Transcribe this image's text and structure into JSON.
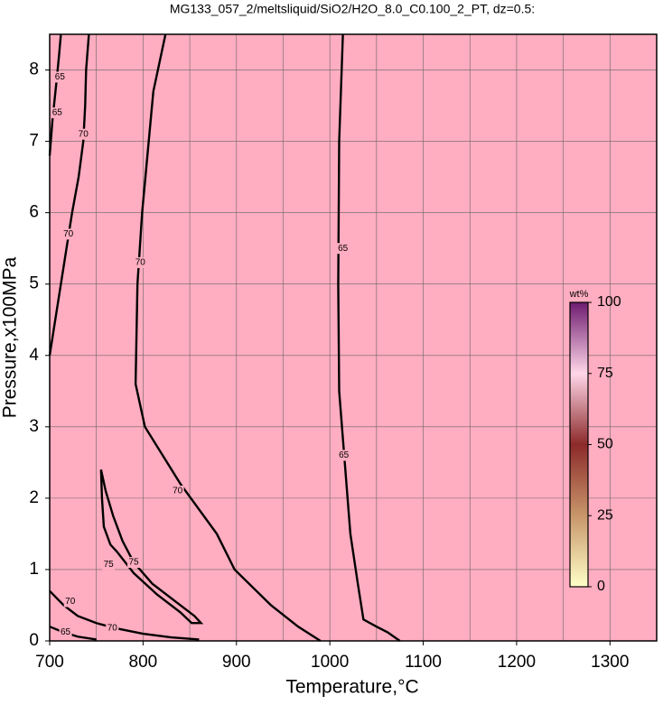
{
  "chart_data": {
    "type": "contour",
    "title": "MG133_057_2/meltsliquid/SiO2/H2O_8.0_C0.100_2_PT, dz=0.5:",
    "xlabel": "Temperature,°C",
    "ylabel": "Pressure,x100MPa",
    "xlim": [
      700,
      1350
    ],
    "ylim": [
      0,
      8.5
    ],
    "xticks": [
      700,
      800,
      900,
      1000,
      1100,
      1200,
      1300
    ],
    "yticks": [
      0,
      1,
      2,
      3,
      4,
      5,
      6,
      7,
      8
    ],
    "xgrid": [
      700,
      750,
      800,
      850,
      900,
      950,
      1000,
      1050,
      1100,
      1150,
      1200,
      1250,
      1300,
      1350
    ],
    "grid": true,
    "fill_color": "#ffadc0",
    "contours": [
      {
        "level": 65,
        "x": [
          1014,
          1010,
          1009,
          1010,
          1016,
          1022,
          1030,
          1036,
          1050,
          1062,
          1075
        ],
        "y": [
          8.5,
          7,
          5,
          3.5,
          2.5,
          1.5,
          0.8,
          0.3,
          0.2,
          0.12,
          0
        ],
        "labels": {
          "x": [
            1014,
            1015
          ],
          "y": [
            5.5,
            2.6
          ]
        }
      },
      {
        "level": 70,
        "x": [
          824,
          811,
          799,
          794,
          792,
          802,
          840,
          879,
          898,
          937,
          966,
          990
        ],
        "y": [
          8.5,
          7.7,
          6,
          5,
          3.6,
          3,
          2.2,
          1.5,
          1,
          0.5,
          0.2,
          0
        ],
        "labels": {
          "x": [
            797,
            837
          ],
          "y": [
            5.3,
            2.1
          ]
        }
      },
      {
        "level": 70,
        "x": [
          742,
          739,
          738,
          736,
          731,
          724,
          718,
          712,
          706,
          700
        ],
        "y": [
          8.5,
          8,
          7.5,
          7.0,
          6.5,
          6,
          5.5,
          5,
          4.5,
          4
        ],
        "labels": {
          "x": [
            736,
            720
          ],
          "y": [
            7.1,
            5.7
          ]
        }
      },
      {
        "level": 65,
        "x": [
          700,
          703,
          707,
          710,
          712
        ],
        "y": [
          6.8,
          7.3,
          7.8,
          8.2,
          8.5
        ],
        "labels": {
          "x": [
            708,
            711
          ],
          "y": [
            7.4,
            7.9
          ]
        }
      },
      {
        "level": 75,
        "x": [
          755,
          756,
          758,
          765,
          772,
          790,
          815,
          840,
          852,
          862,
          855,
          835,
          810,
          790,
          778,
          768,
          760,
          755
        ],
        "y": [
          2.4,
          2.0,
          1.6,
          1.35,
          1.25,
          0.95,
          0.65,
          0.4,
          0.25,
          0.25,
          0.35,
          0.55,
          0.8,
          1.1,
          1.4,
          1.75,
          2.1,
          2.4
        ],
        "labels": {
          "x": [
            763,
            790
          ],
          "y": [
            1.07,
            1.1
          ]
        }
      },
      {
        "level": 70,
        "x": [
          700,
          715,
          730,
          750,
          770,
          800,
          830,
          860
        ],
        "y": [
          0.7,
          0.5,
          0.35,
          0.25,
          0.18,
          0.1,
          0.05,
          0.02
        ],
        "labels": {
          "x": [
            722,
            767
          ],
          "y": [
            0.55,
            0.18
          ]
        }
      },
      {
        "level": 65,
        "x": [
          700,
          715,
          730,
          750
        ],
        "y": [
          0.2,
          0.12,
          0.06,
          0.02
        ],
        "labels": {
          "x": [
            717
          ],
          "y": [
            0.12
          ]
        }
      }
    ],
    "colorbar": {
      "label": "wt%",
      "lim": [
        0,
        100
      ],
      "ticks": [
        0,
        25,
        50,
        75,
        100
      ],
      "colors": [
        "#ffffc8",
        "#c8966a",
        "#8c2a2a",
        "#ffd6e8",
        "#6e1c70"
      ]
    }
  }
}
